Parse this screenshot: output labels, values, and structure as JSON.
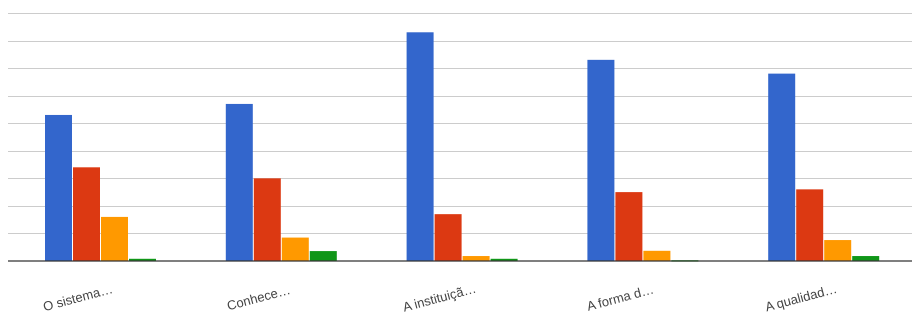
{
  "chart_data": {
    "type": "bar",
    "categories": [
      "O sistema…",
      "Conhece…",
      "A instituiçã…",
      "A forma d…",
      "A qualidad…"
    ],
    "series": [
      {
        "values": [
          53,
          57,
          83,
          73,
          68
        ],
        "color": "#3366cc"
      },
      {
        "values": [
          34,
          30,
          17,
          25,
          26
        ],
        "color": "#dc3912"
      },
      {
        "values": [
          16,
          8.5,
          1.8,
          3.7,
          7.6
        ],
        "color": "#ff9900"
      },
      {
        "values": [
          0.8,
          3.6,
          0.8,
          0.3,
          1.8
        ],
        "color": "#109618"
      }
    ],
    "ylim": [
      0,
      90
    ],
    "grid": true,
    "legend": "none",
    "title": "",
    "xlabel": "",
    "ylabel": ""
  }
}
